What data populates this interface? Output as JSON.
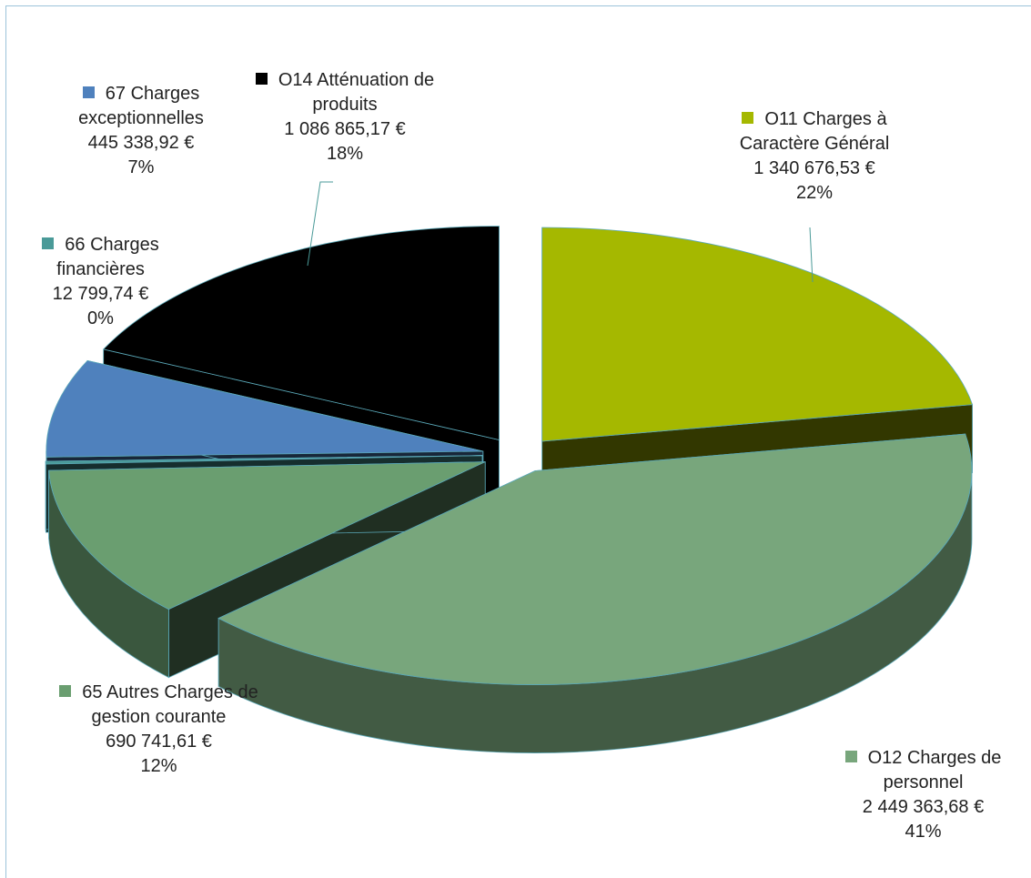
{
  "chart_data": {
    "type": "pie3d",
    "categories": [
      "O11 Charges à Caractère Général",
      "O12 Charges de personnel",
      "65 Autres Charges de gestion courante",
      "66 Charges financières",
      "67 Charges exceptionnelles",
      "O14 Atténuation de produits"
    ],
    "amounts": [
      1340676.53,
      2449363.68,
      690741.61,
      12799.74,
      445338.92,
      1086865.17
    ],
    "amount_labels": [
      "1 340 676,53 €",
      "2 449 363,68 €",
      "690 741,61 €",
      "12 799,74 €",
      "445 338,92 €",
      "1 086 865,17 €"
    ],
    "values": [
      22,
      41,
      12,
      0,
      7,
      18
    ],
    "value_labels": [
      "22%",
      "41%",
      "12%",
      "0%",
      "7%",
      "18%"
    ],
    "colors": [
      "#a5b800",
      "#78a67c",
      "#6a9e70",
      "#4a9a98",
      "#4f81bd",
      "#000000"
    ]
  }
}
